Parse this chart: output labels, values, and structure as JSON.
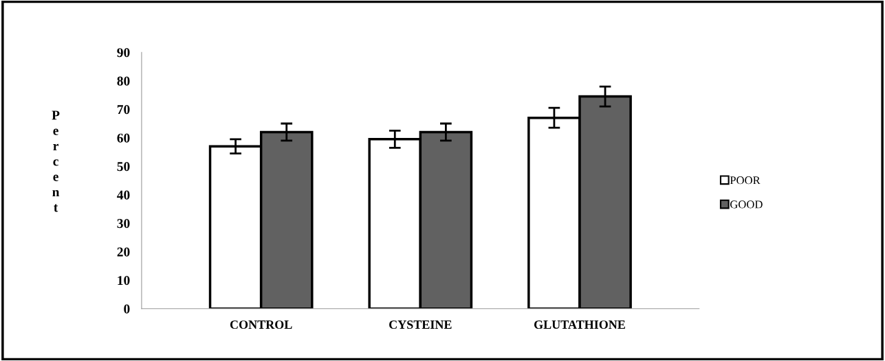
{
  "chart_data": {
    "type": "bar",
    "ylabel": "Percent",
    "categories": [
      "CONTROL",
      "CYSTEINE",
      "GLUTATHIONE"
    ],
    "series": [
      {
        "name": "POOR",
        "color": "#ffffff",
        "values": [
          57,
          59.5,
          67
        ],
        "errors": [
          2.5,
          3,
          3.5
        ]
      },
      {
        "name": "GOOD",
        "color": "#616161",
        "values": [
          62,
          62,
          74.5
        ],
        "errors": [
          3,
          3,
          3.5
        ]
      }
    ],
    "ylim": [
      0,
      90
    ],
    "yticks": [
      0,
      10,
      20,
      30,
      40,
      50,
      60,
      70,
      80,
      90
    ],
    "grid": false,
    "legend": "right"
  }
}
